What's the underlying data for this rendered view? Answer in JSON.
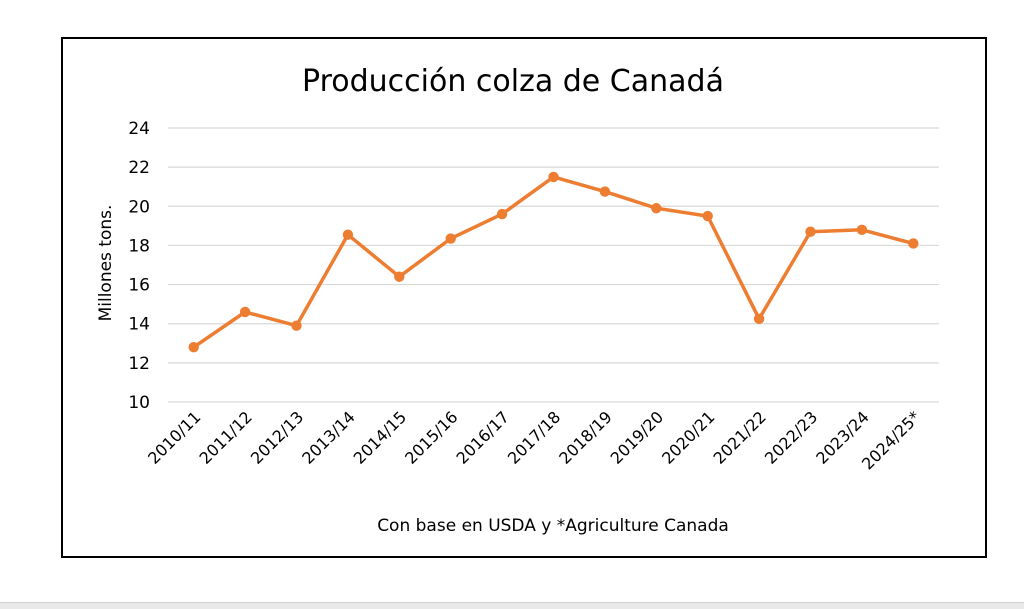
{
  "chart_data": {
    "type": "line",
    "title": "Producción colza de Canadá",
    "ylabel": "Millones tons.",
    "xlabel": "Con base en USDA y *Agriculture Canada",
    "ylim": [
      10,
      24
    ],
    "yticks": [
      10,
      12,
      14,
      16,
      18,
      20,
      22,
      24
    ],
    "grid": true,
    "legend": "none",
    "categories": [
      "2010/11",
      "2011/12",
      "2012/13",
      "2013/14",
      "2014/15",
      "2015/16",
      "2016/17",
      "2017/18",
      "2018/19",
      "2019/20",
      "2020/21",
      "2021/22",
      "2022/23",
      "2023/24",
      "2024/25*"
    ],
    "series": [
      {
        "values": [
          12.8,
          14.6,
          13.9,
          18.55,
          16.4,
          18.35,
          19.6,
          21.5,
          20.75,
          19.9,
          19.5,
          14.25,
          18.7,
          18.8,
          18.1
        ]
      }
    ],
    "colors": {
      "line": "#ED7D31",
      "grid": "#D9D9D9"
    }
  }
}
